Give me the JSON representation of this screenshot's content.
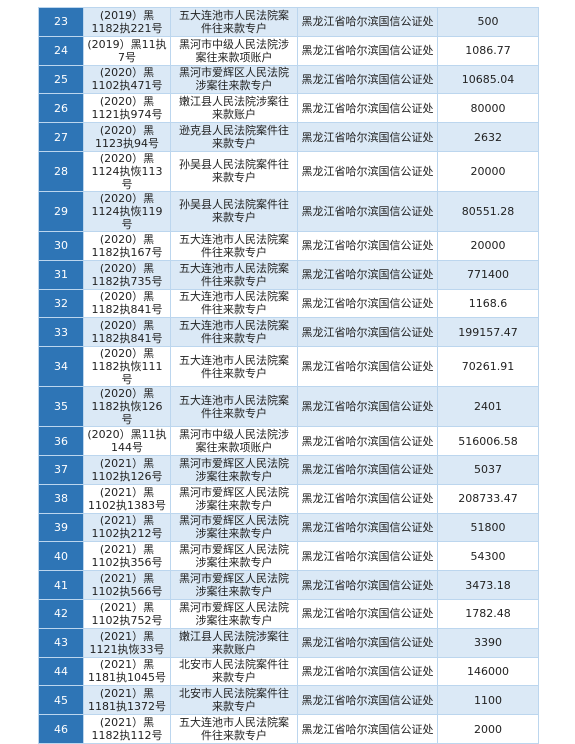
{
  "table": {
    "rows": [
      [
        23,
        "(2019）黑1182执221号",
        "五大连池市人民法院案件往来款专户",
        "黑龙江省哈尔滨国信公证处",
        500
      ],
      [
        24,
        "(2019）黑11执7号",
        "黑河市中级人民法院涉案往来款项账户",
        "黑龙江省哈尔滨国信公证处",
        1086.77
      ],
      [
        25,
        "(2020）黑1102执471号",
        "黑河市爱辉区人民法院涉案往来款专户",
        "黑龙江省哈尔滨国信公证处",
        10685.04
      ],
      [
        26,
        "(2020）黑1121执974号",
        "嫩江县人民法院涉案往来款账户",
        "黑龙江省哈尔滨国信公证处",
        80000
      ],
      [
        27,
        "(2020）黑1123执94号",
        "逊克县人民法院案件往来款专户",
        "黑龙江省哈尔滨国信公证处",
        2632
      ],
      [
        28,
        "(2020）黑1124执恢113号",
        "孙吴县人民法院案件往来款专户",
        "黑龙江省哈尔滨国信公证处",
        20000
      ],
      [
        29,
        "(2020）黑1124执恢119号",
        "孙吴县人民法院案件往来款专户",
        "黑龙江省哈尔滨国信公证处",
        80551.28
      ],
      [
        30,
        "(2020）黑1182执167号",
        "五大连池市人民法院案件往来款专户",
        "黑龙江省哈尔滨国信公证处",
        20000
      ],
      [
        31,
        "(2020）黑1182执735号",
        "五大连池市人民法院案件往来款专户",
        "黑龙江省哈尔滨国信公证处",
        771400
      ],
      [
        32,
        "(2020）黑1182执841号",
        "五大连池市人民法院案件往来款专户",
        "黑龙江省哈尔滨国信公证处",
        1168.6
      ],
      [
        33,
        "(2020）黑1182执841号",
        "五大连池市人民法院案件往来款专户",
        "黑龙江省哈尔滨国信公证处",
        199157.47
      ],
      [
        34,
        "(2020）黑1182执恢111号",
        "五大连池市人民法院案件往来款专户",
        "黑龙江省哈尔滨国信公证处",
        70261.91
      ],
      [
        35,
        "(2020）黑1182执恢126号",
        "五大连池市人民法院案件往来款专户",
        "黑龙江省哈尔滨国信公证处",
        2401
      ],
      [
        36,
        "(2020）黑11执144号",
        "黑河市中级人民法院涉案往来款项账户",
        "黑龙江省哈尔滨国信公证处",
        516006.58
      ],
      [
        37,
        "(2021）黑1102执126号",
        "黑河市爱辉区人民法院涉案往来款专户",
        "黑龙江省哈尔滨国信公证处",
        5037
      ],
      [
        38,
        "(2021）黑1102执1383号",
        "黑河市爱辉区人民法院涉案往来款专户",
        "黑龙江省哈尔滨国信公证处",
        208733.47
      ],
      [
        39,
        "(2021）黑1102执212号",
        "黑河市爱辉区人民法院涉案往来款专户",
        "黑龙江省哈尔滨国信公证处",
        51800
      ],
      [
        40,
        "(2021）黑1102执356号",
        "黑河市爱辉区人民法院涉案往来款专户",
        "黑龙江省哈尔滨国信公证处",
        54300
      ],
      [
        41,
        "(2021）黑1102执566号",
        "黑河市爱辉区人民法院涉案往来款专户",
        "黑龙江省哈尔滨国信公证处",
        3473.18
      ],
      [
        42,
        "(2021）黑1102执752号",
        "黑河市爱辉区人民法院涉案往来款专户",
        "黑龙江省哈尔滨国信公证处",
        1782.48
      ],
      [
        43,
        "(2021）黑1121执恢33号",
        "嫩江县人民法院涉案往来款账户",
        "黑龙江省哈尔滨国信公证处",
        3390
      ],
      [
        44,
        "(2021）黑1181执1045号",
        "北安市人民法院案件往来款专户",
        "黑龙江省哈尔滨国信公证处",
        146000
      ],
      [
        45,
        "(2021）黑1181执1372号",
        "北安市人民法院案件往来款专户",
        "黑龙江省哈尔滨国信公证处",
        1100
      ],
      [
        46,
        "(2021）黑1182执112号",
        "五大连池市人民法院案件往来款专户",
        "黑龙江省哈尔滨国信公证处",
        2000
      ]
    ]
  }
}
